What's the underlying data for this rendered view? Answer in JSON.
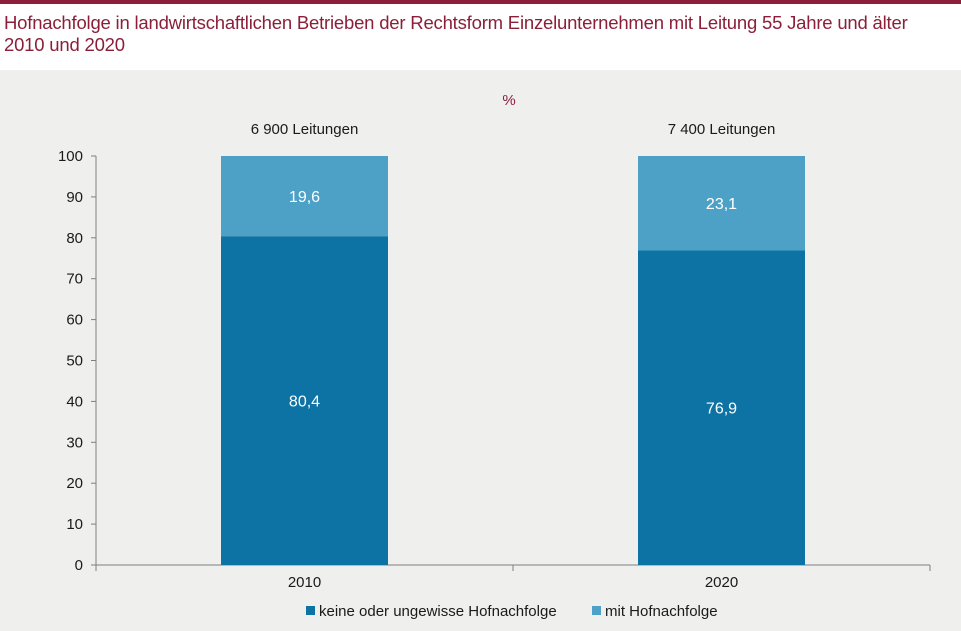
{
  "title_lines": [
    "Hofnachfolge in landwirtschaftlichen Betrieben der Rechtsform Einzelunternehmen mit Leitung 55 Jahre und älter",
    "2010 und 2020"
  ],
  "colors": {
    "title": "#8b1f3a",
    "background": "#efefee",
    "series_dark": "#0d73a5",
    "series_light": "#4ea1c6"
  },
  "chart_data": {
    "type": "bar",
    "stacked": true,
    "unit": "%",
    "categories": [
      "2010",
      "2020"
    ],
    "totals": [
      "6 900 Leitungen",
      "7 400 Leitungen"
    ],
    "series": [
      {
        "name": "keine oder ungewisse Hofnachfolge",
        "values": [
          80.4,
          76.9
        ],
        "labels": [
          "80,4",
          "76,9"
        ],
        "color": "#0d73a5"
      },
      {
        "name": "mit Hofnachfolge",
        "values": [
          19.6,
          23.1
        ],
        "labels": [
          "19,6",
          "23,1"
        ],
        "color": "#4ea1c6"
      }
    ],
    "yticks": [
      "0",
      "10",
      "20",
      "30",
      "40",
      "50",
      "60",
      "70",
      "80",
      "90",
      "100"
    ],
    "ylim": [
      0,
      100
    ],
    "grid": false,
    "legend_position": "bottom"
  }
}
